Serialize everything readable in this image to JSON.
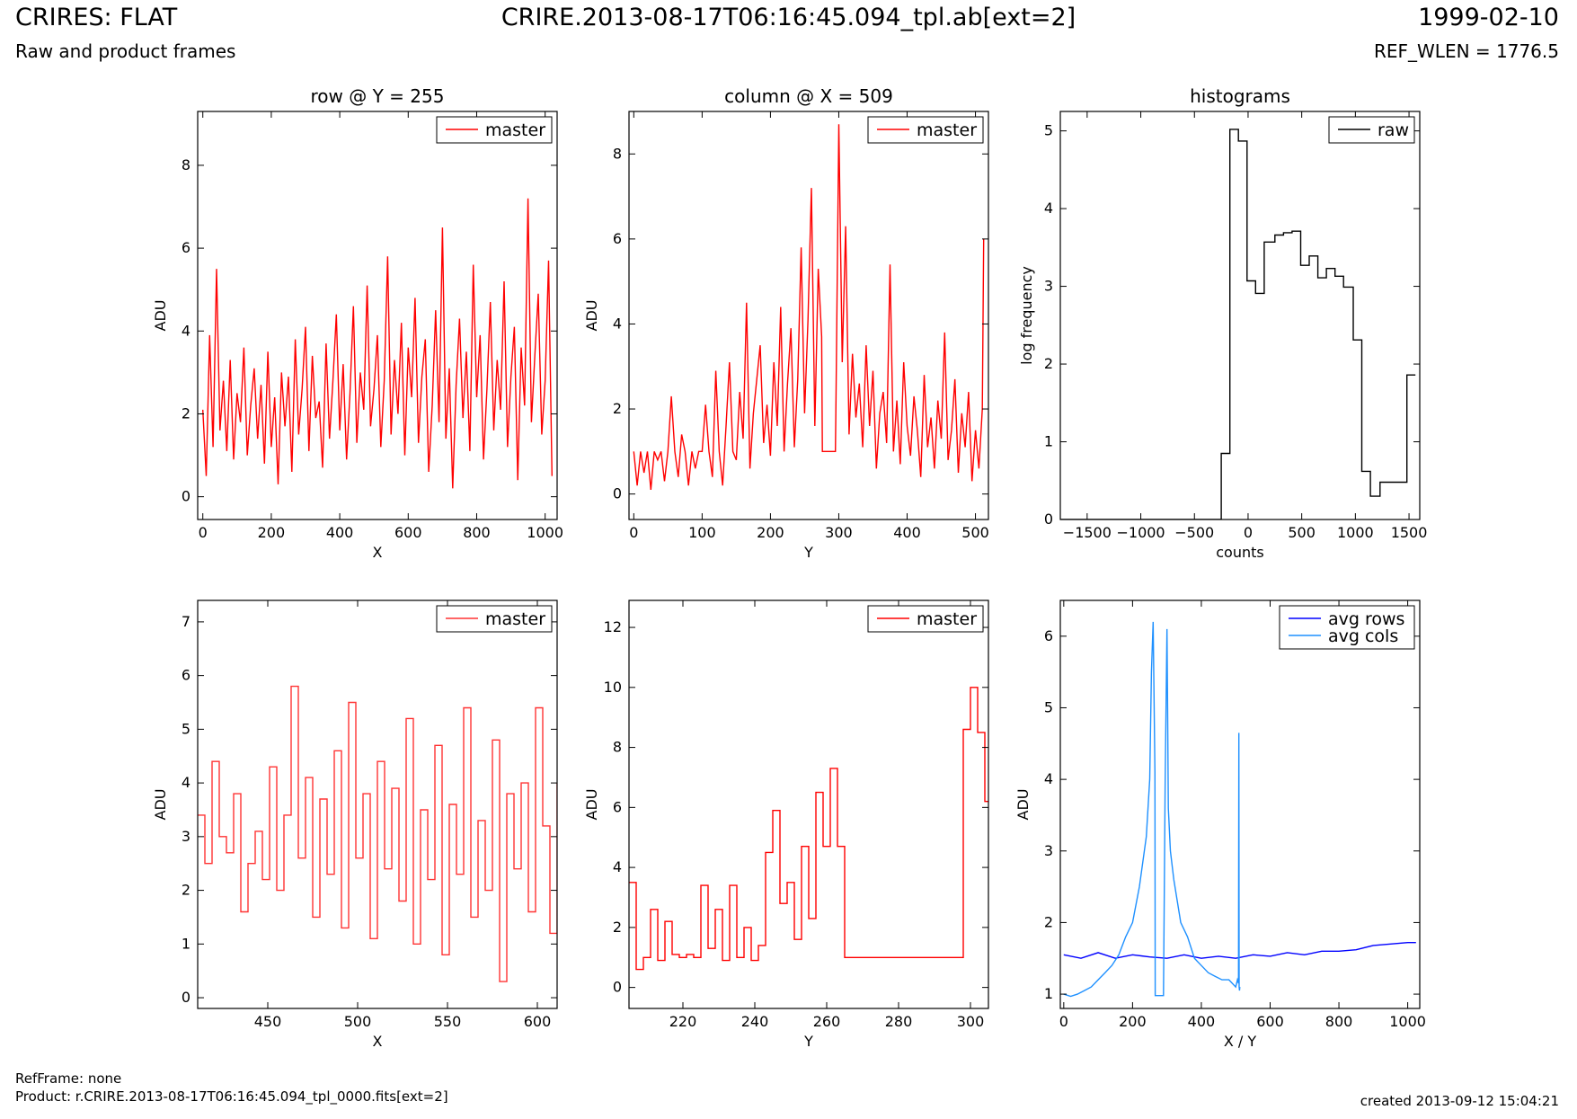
{
  "header": {
    "title_left": "CRIRES: FLAT",
    "subtitle_left": "Raw and product frames",
    "title_center": "CRIRE.2013-08-17T06:16:45.094_tpl.ab[ext=2]",
    "title_right": "1999-02-10",
    "subtitle_right": "REF_WLEN = 1776.5"
  },
  "footer": {
    "ref_frame": "RefFrame: none",
    "product": "Product: r.CRIRE.2013-08-17T06:16:45.094_tpl_0000.fits[ext=2]",
    "created": "created 2013-09-12 15:04:21"
  },
  "colors": {
    "red": "#ff0000",
    "black": "#000000",
    "blue": "#0000ff",
    "lightblue": "#1e90ff"
  },
  "chart_data": [
    {
      "type": "line",
      "title": "row @ Y = 255",
      "xlabel": "X",
      "ylabel": "ADU",
      "xlim": [
        -15,
        1035
      ],
      "ylim": [
        -0.55,
        9.3
      ],
      "xticks": [
        0,
        200,
        400,
        600,
        800,
        1000
      ],
      "yticks": [
        0,
        2,
        4,
        6,
        8
      ],
      "legend": "top-right",
      "series": [
        {
          "name": "master",
          "color": "#ff0000",
          "x": [
            0,
            10,
            20,
            30,
            40,
            50,
            60,
            70,
            80,
            90,
            100,
            110,
            120,
            130,
            140,
            150,
            160,
            170,
            180,
            190,
            200,
            210,
            220,
            230,
            240,
            250,
            260,
            270,
            280,
            290,
            300,
            310,
            320,
            330,
            340,
            350,
            360,
            370,
            380,
            390,
            400,
            410,
            420,
            430,
            440,
            450,
            460,
            470,
            480,
            490,
            500,
            510,
            520,
            530,
            540,
            550,
            560,
            570,
            580,
            590,
            600,
            610,
            620,
            630,
            640,
            650,
            660,
            670,
            680,
            690,
            700,
            710,
            720,
            730,
            740,
            750,
            760,
            770,
            780,
            790,
            800,
            810,
            820,
            830,
            840,
            850,
            860,
            870,
            880,
            890,
            900,
            910,
            920,
            930,
            940,
            950,
            960,
            970,
            980,
            990,
            1000,
            1010,
            1020
          ],
          "y": [
            2.1,
            0.5,
            3.9,
            1.2,
            5.5,
            1.6,
            2.8,
            1.1,
            3.3,
            0.9,
            2.5,
            1.8,
            3.6,
            1.0,
            2.2,
            3.1,
            1.4,
            2.7,
            0.8,
            3.5,
            1.2,
            2.4,
            0.3,
            3.0,
            1.7,
            2.9,
            0.6,
            3.8,
            1.5,
            2.6,
            4.1,
            1.1,
            3.4,
            1.9,
            2.3,
            0.7,
            3.7,
            1.4,
            2.8,
            4.4,
            1.6,
            3.2,
            0.9,
            2.5,
            4.6,
            1.3,
            3.0,
            2.1,
            5.1,
            1.7,
            2.6,
            3.9,
            1.2,
            2.8,
            5.8,
            1.5,
            3.3,
            2.0,
            4.2,
            1.0,
            3.6,
            2.4,
            4.8,
            1.3,
            2.9,
            3.8,
            0.6,
            2.2,
            4.5,
            1.8,
            6.5,
            1.4,
            3.1,
            0.2,
            2.7,
            4.3,
            1.9,
            3.5,
            1.1,
            5.6,
            2.4,
            3.9,
            0.9,
            2.6,
            4.7,
            1.6,
            3.3,
            2.1,
            5.2,
            1.2,
            2.9,
            4.1,
            0.4,
            3.6,
            2.2,
            7.2,
            1.8,
            3.4,
            4.9,
            1.5,
            2.8,
            5.7,
            0.5
          ]
        }
      ]
    },
    {
      "type": "line",
      "title": "column @ X = 509",
      "xlabel": "Y",
      "ylabel": "ADU",
      "xlim": [
        -7,
        519
      ],
      "ylim": [
        -0.6,
        9.0
      ],
      "xticks": [
        0,
        100,
        200,
        300,
        400,
        500
      ],
      "yticks": [
        0,
        2,
        4,
        6,
        8
      ],
      "legend": "top-right",
      "series": [
        {
          "name": "master",
          "color": "#ff0000",
          "x": [
            0,
            5,
            10,
            15,
            20,
            25,
            30,
            35,
            40,
            45,
            50,
            55,
            60,
            65,
            70,
            75,
            80,
            85,
            90,
            95,
            100,
            105,
            110,
            115,
            120,
            125,
            130,
            135,
            140,
            145,
            150,
            155,
            160,
            165,
            170,
            175,
            180,
            185,
            190,
            195,
            200,
            205,
            210,
            215,
            220,
            225,
            230,
            235,
            240,
            245,
            250,
            255,
            260,
            265,
            270,
            275,
            276,
            280,
            285,
            290,
            295,
            296,
            300,
            305,
            310,
            315,
            320,
            325,
            330,
            335,
            340,
            345,
            350,
            355,
            360,
            365,
            370,
            375,
            380,
            385,
            390,
            395,
            400,
            405,
            410,
            415,
            420,
            425,
            430,
            435,
            440,
            445,
            450,
            455,
            460,
            465,
            470,
            475,
            480,
            485,
            490,
            495,
            500,
            505,
            510,
            512
          ],
          "y": [
            1.0,
            0.2,
            1.0,
            0.5,
            1.0,
            0.1,
            1.0,
            0.8,
            1.0,
            0.3,
            1.0,
            2.3,
            1.0,
            0.4,
            1.4,
            1.0,
            0.2,
            1.0,
            0.6,
            1.0,
            1.0,
            2.1,
            1.0,
            0.4,
            2.9,
            1.0,
            0.2,
            1.6,
            3.1,
            1.0,
            0.8,
            2.4,
            1.3,
            4.5,
            0.6,
            1.9,
            2.7,
            3.5,
            1.2,
            2.1,
            0.9,
            3.1,
            1.6,
            4.4,
            1.0,
            2.6,
            3.9,
            1.1,
            2.7,
            5.8,
            1.9,
            4.1,
            7.2,
            1.6,
            5.3,
            3.7,
            1.0,
            1.0,
            1.0,
            1.0,
            1.0,
            2.3,
            8.7,
            3.1,
            6.3,
            1.4,
            3.3,
            1.8,
            2.6,
            1.1,
            3.5,
            1.6,
            2.9,
            0.6,
            1.9,
            2.4,
            1.2,
            5.4,
            1.0,
            2.2,
            0.7,
            3.1,
            1.6,
            0.9,
            2.3,
            1.5,
            0.4,
            2.8,
            1.1,
            1.8,
            0.6,
            2.2,
            1.3,
            3.8,
            0.8,
            1.5,
            2.7,
            0.5,
            1.9,
            1.1,
            2.4,
            0.3,
            1.5,
            0.6,
            2.0,
            6.0
          ]
        }
      ]
    },
    {
      "type": "line",
      "title": "histograms",
      "xlabel": "counts",
      "ylabel": "log frequency",
      "xlim": [
        -1750,
        1600
      ],
      "ylim": [
        0,
        5.25
      ],
      "xticks": [
        -1500,
        -1000,
        -500,
        0,
        500,
        1000,
        1500
      ],
      "yticks": [
        0,
        1,
        2,
        3,
        4,
        5
      ],
      "legend": "top-right",
      "series": [
        {
          "name": "raw",
          "color": "#000000",
          "step": true,
          "x": [
            -1750,
            -1000,
            -250,
            -170,
            -90,
            -10,
            70,
            150,
            250,
            330,
            410,
            490,
            570,
            650,
            730,
            810,
            890,
            980,
            1060,
            1140,
            1230,
            1310,
            1400,
            1480,
            1560
          ],
          "y": [
            0,
            0,
            0.85,
            5.02,
            4.87,
            3.07,
            2.91,
            3.57,
            3.66,
            3.69,
            3.71,
            3.27,
            3.39,
            3.11,
            3.23,
            3.13,
            2.99,
            2.31,
            0.62,
            0.3,
            0.48,
            0.48,
            0.48,
            1.86,
            1.86
          ]
        }
      ]
    },
    {
      "type": "line",
      "title": "",
      "xlabel": "X",
      "ylabel": "ADU",
      "xlim": [
        411,
        611
      ],
      "ylim": [
        -0.2,
        7.4
      ],
      "xticks": [
        450,
        500,
        550,
        600
      ],
      "yticks": [
        0,
        1,
        2,
        3,
        4,
        5,
        6,
        7
      ],
      "legend": "top-right",
      "series": [
        {
          "name": "master",
          "color": "#ff3333",
          "step": true,
          "x": [
            411,
            415,
            419,
            423,
            427,
            431,
            435,
            439,
            443,
            447,
            451,
            455,
            459,
            463,
            467,
            471,
            475,
            479,
            483,
            487,
            491,
            495,
            499,
            503,
            507,
            511,
            515,
            519,
            523,
            527,
            531,
            535,
            539,
            543,
            547,
            551,
            555,
            559,
            563,
            567,
            571,
            575,
            579,
            583,
            587,
            591,
            595,
            599,
            603,
            607,
            611
          ],
          "y": [
            3.4,
            2.5,
            4.4,
            3.0,
            2.7,
            3.8,
            1.6,
            2.5,
            3.1,
            2.2,
            4.3,
            2.0,
            3.4,
            5.8,
            2.6,
            4.1,
            1.5,
            3.7,
            2.3,
            4.6,
            1.3,
            5.5,
            2.6,
            3.8,
            1.1,
            4.4,
            2.4,
            3.9,
            1.8,
            5.2,
            1.0,
            3.5,
            2.2,
            4.7,
            0.8,
            3.6,
            2.3,
            5.4,
            1.5,
            3.3,
            2.0,
            4.8,
            0.3,
            3.8,
            2.4,
            4.0,
            1.6,
            5.4,
            3.2,
            1.2,
            4.0
          ]
        }
      ]
    },
    {
      "type": "line",
      "title": "",
      "xlabel": "Y",
      "ylabel": "ADU",
      "xlim": [
        205,
        305
      ],
      "ylim": [
        -0.7,
        12.9
      ],
      "xticks": [
        220,
        240,
        260,
        280,
        300
      ],
      "yticks": [
        0,
        2,
        4,
        6,
        8,
        10,
        12
      ],
      "legend": "top-right",
      "series": [
        {
          "name": "master",
          "color": "#ff0000",
          "step": true,
          "x": [
            205,
            207,
            209,
            211,
            213,
            215,
            217,
            219,
            221,
            223,
            225,
            227,
            229,
            231,
            233,
            235,
            237,
            239,
            241,
            243,
            245,
            247,
            249,
            251,
            253,
            255,
            257,
            259,
            261,
            263,
            265,
            270,
            280,
            290,
            298,
            300,
            302,
            304,
            305
          ],
          "y": [
            3.5,
            0.6,
            1.0,
            2.6,
            0.9,
            2.2,
            1.1,
            1.0,
            1.1,
            1.0,
            3.4,
            1.3,
            2.6,
            0.9,
            3.4,
            1.0,
            2.0,
            0.9,
            1.4,
            4.5,
            5.9,
            2.8,
            3.5,
            1.6,
            4.7,
            2.3,
            6.5,
            4.7,
            7.3,
            4.7,
            1.0,
            1.0,
            1.0,
            1.0,
            8.6,
            10.0,
            8.5,
            6.2,
            6.2
          ]
        }
      ]
    },
    {
      "type": "line",
      "title": "",
      "xlabel": "X / Y",
      "ylabel": "ADU",
      "xlim": [
        -10,
        1035
      ],
      "ylim": [
        0.8,
        6.5
      ],
      "xticks": [
        0,
        200,
        400,
        600,
        800,
        1000
      ],
      "yticks": [
        1,
        2,
        3,
        4,
        5,
        6
      ],
      "legend": "top-right",
      "series": [
        {
          "name": "avg rows",
          "color": "#0000ff",
          "x": [
            0,
            50,
            100,
            150,
            200,
            250,
            300,
            350,
            400,
            450,
            500,
            550,
            600,
            650,
            700,
            750,
            800,
            850,
            900,
            950,
            1000,
            1024
          ],
          "y": [
            1.55,
            1.5,
            1.58,
            1.5,
            1.55,
            1.52,
            1.5,
            1.55,
            1.5,
            1.53,
            1.5,
            1.55,
            1.53,
            1.58,
            1.55,
            1.6,
            1.6,
            1.62,
            1.68,
            1.7,
            1.72,
            1.72
          ]
        },
        {
          "name": "avg cols",
          "color": "#1e90ff",
          "x": [
            0,
            20,
            40,
            60,
            80,
            100,
            120,
            140,
            160,
            180,
            200,
            220,
            240,
            250,
            255,
            260,
            265,
            266,
            270,
            280,
            290,
            295,
            300,
            302,
            304,
            310,
            320,
            340,
            360,
            380,
            400,
            420,
            440,
            460,
            480,
            500,
            505,
            508,
            509,
            510,
            511,
            512
          ],
          "y": [
            1.0,
            0.97,
            1.0,
            1.05,
            1.1,
            1.2,
            1.3,
            1.4,
            1.55,
            1.8,
            2.0,
            2.5,
            3.2,
            4.0,
            5.5,
            6.2,
            4.1,
            0.98,
            0.98,
            0.98,
            0.98,
            4.0,
            6.1,
            5.0,
            3.6,
            3.0,
            2.6,
            2.0,
            1.8,
            1.5,
            1.4,
            1.3,
            1.25,
            1.2,
            1.2,
            1.1,
            1.2,
            1.15,
            4.65,
            1.1,
            1.05,
            1.1
          ]
        }
      ]
    }
  ]
}
